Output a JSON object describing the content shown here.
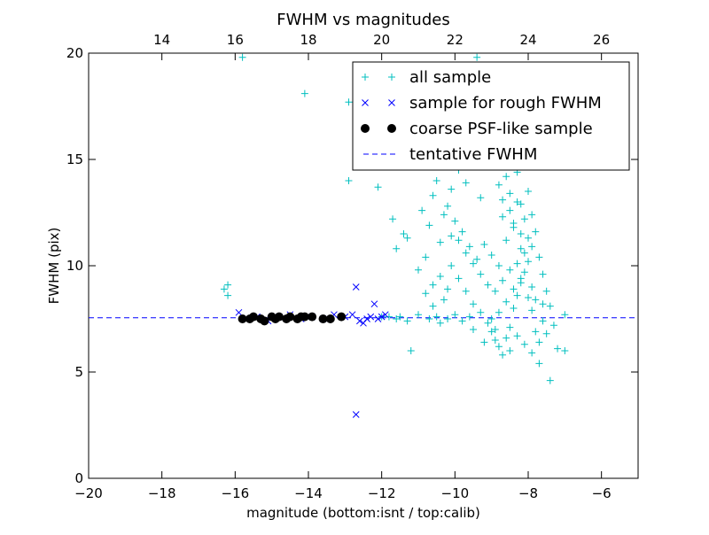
{
  "chart_data": {
    "type": "scatter",
    "title": "FWHM vs magnitudes",
    "xlabel": "magnitude (bottom:isnt / top:calib)",
    "ylabel": "FWHM (pix)",
    "xlim": [
      -20,
      -5
    ],
    "ylim": [
      0,
      20
    ],
    "top_xlim": [
      12,
      27
    ],
    "x_ticks": [
      -20,
      -18,
      -16,
      -14,
      -12,
      -10,
      -8,
      -6
    ],
    "x_tick_labels": [
      "−20",
      "−18",
      "−16",
      "−14",
      "−12",
      "−10",
      "−8",
      "−6"
    ],
    "y_ticks": [
      0,
      5,
      10,
      15,
      20
    ],
    "y_tick_labels": [
      "0",
      "5",
      "10",
      "15",
      "20"
    ],
    "top_ticks": [
      14,
      16,
      18,
      20,
      22,
      24,
      26
    ],
    "top_tick_labels": [
      "14",
      "16",
      "18",
      "20",
      "22",
      "24",
      "26"
    ],
    "grid": false,
    "legend_position": "upper-right",
    "tentative_fwhm": 7.55,
    "series": [
      {
        "name": "all sample",
        "marker": "plus",
        "color": "#00bfbf",
        "points": [
          [
            -16.3,
            8.9
          ],
          [
            -16.2,
            9.1
          ],
          [
            -16.2,
            8.6
          ],
          [
            -15.8,
            19.8
          ],
          [
            -14.1,
            18.1
          ],
          [
            -12.9,
            17.7
          ],
          [
            -12.9,
            14.0
          ],
          [
            -12.1,
            13.7
          ],
          [
            -11.7,
            12.2
          ],
          [
            -11.4,
            11.5
          ],
          [
            -11.3,
            11.3
          ],
          [
            -11.6,
            10.8
          ],
          [
            -11.2,
            6.0
          ],
          [
            -11.5,
            7.6
          ],
          [
            -11.0,
            7.7
          ],
          [
            -10.7,
            7.5
          ],
          [
            -10.5,
            7.6
          ],
          [
            -11.0,
            9.8
          ],
          [
            -10.6,
            9.1
          ],
          [
            -10.3,
            8.4
          ],
          [
            -10.8,
            10.4
          ],
          [
            -10.4,
            11.1
          ],
          [
            -10.9,
            12.6
          ],
          [
            -10.6,
            13.3
          ],
          [
            -10.2,
            12.8
          ],
          [
            -10.5,
            14.0
          ],
          [
            -10.1,
            13.6
          ],
          [
            -9.9,
            14.5
          ],
          [
            -9.7,
            13.9
          ],
          [
            -9.5,
            14.8
          ],
          [
            -9.3,
            13.2
          ],
          [
            -10.0,
            12.1
          ],
          [
            -9.8,
            11.6
          ],
          [
            -9.6,
            10.9
          ],
          [
            -9.4,
            10.3
          ],
          [
            -10.1,
            10.0
          ],
          [
            -9.9,
            9.4
          ],
          [
            -9.7,
            8.8
          ],
          [
            -9.5,
            8.2
          ],
          [
            -9.3,
            7.8
          ],
          [
            -9.1,
            7.3
          ],
          [
            -9.0,
            6.9
          ],
          [
            -8.9,
            6.5
          ],
          [
            -8.8,
            6.2
          ],
          [
            -8.7,
            5.8
          ],
          [
            -8.6,
            6.6
          ],
          [
            -8.5,
            7.1
          ],
          [
            -8.4,
            8.0
          ],
          [
            -8.3,
            8.6
          ],
          [
            -8.2,
            9.2
          ],
          [
            -8.1,
            9.7
          ],
          [
            -8.0,
            10.2
          ],
          [
            -7.9,
            10.9
          ],
          [
            -8.2,
            11.5
          ],
          [
            -8.4,
            12.0
          ],
          [
            -8.5,
            12.6
          ],
          [
            -8.7,
            13.1
          ],
          [
            -8.8,
            13.8
          ],
          [
            -8.6,
            14.2
          ],
          [
            -8.3,
            14.4
          ],
          [
            -9.0,
            15.1
          ],
          [
            -9.2,
            14.7
          ],
          [
            -8.9,
            15.9
          ],
          [
            -9.1,
            16.3
          ],
          [
            -8.7,
            16.8
          ],
          [
            -9.3,
            17.4
          ],
          [
            -9.0,
            18.2
          ],
          [
            -8.5,
            17.6
          ],
          [
            -8.8,
            19.1
          ],
          [
            -8.6,
            18.7
          ],
          [
            -9.4,
            19.8
          ],
          [
            -9.6,
            16.1
          ],
          [
            -9.8,
            15.5
          ],
          [
            -10.0,
            16.7
          ],
          [
            -10.3,
            15.3
          ],
          [
            -10.2,
            19.4
          ],
          [
            -10.9,
            18.9
          ],
          [
            -11.1,
            19.4
          ],
          [
            -8.2,
            12.9
          ],
          [
            -8.0,
            13.5
          ],
          [
            -7.9,
            12.4
          ],
          [
            -7.8,
            11.6
          ],
          [
            -7.7,
            10.4
          ],
          [
            -7.6,
            9.6
          ],
          [
            -7.5,
            8.8
          ],
          [
            -7.4,
            8.1
          ],
          [
            -7.6,
            7.4
          ],
          [
            -7.8,
            6.9
          ],
          [
            -7.7,
            6.4
          ],
          [
            -7.5,
            6.8
          ],
          [
            -7.3,
            7.2
          ],
          [
            -7.2,
            6.1
          ],
          [
            -7.0,
            6.0
          ],
          [
            -7.0,
            7.7
          ],
          [
            -7.4,
            4.6
          ],
          [
            -7.7,
            5.4
          ],
          [
            -7.9,
            5.9
          ],
          [
            -8.1,
            6.3
          ],
          [
            -8.3,
            6.7
          ],
          [
            -8.5,
            6.0
          ],
          [
            -8.9,
            7.0
          ],
          [
            -9.2,
            6.4
          ],
          [
            -9.5,
            7.0
          ],
          [
            -9.8,
            7.4
          ],
          [
            -10.2,
            7.5
          ],
          [
            -10.4,
            7.3
          ],
          [
            -10.0,
            7.7
          ],
          [
            -9.6,
            7.6
          ],
          [
            -9.0,
            7.5
          ],
          [
            -8.8,
            7.8
          ],
          [
            -8.6,
            8.3
          ],
          [
            -8.4,
            8.9
          ],
          [
            -8.2,
            9.4
          ],
          [
            -8.0,
            8.5
          ],
          [
            -7.9,
            9.0
          ],
          [
            -8.1,
            10.6
          ],
          [
            -8.3,
            10.1
          ],
          [
            -8.5,
            9.8
          ],
          [
            -8.7,
            9.3
          ],
          [
            -8.9,
            8.8
          ],
          [
            -9.1,
            9.1
          ],
          [
            -9.3,
            9.6
          ],
          [
            -9.5,
            10.1
          ],
          [
            -9.7,
            10.6
          ],
          [
            -9.9,
            11.2
          ],
          [
            -10.1,
            11.4
          ],
          [
            -10.3,
            12.4
          ],
          [
            -10.7,
            11.9
          ],
          [
            -10.8,
            8.7
          ],
          [
            -10.6,
            8.1
          ],
          [
            -10.4,
            9.5
          ],
          [
            -10.2,
            8.9
          ],
          [
            -11.3,
            7.4
          ],
          [
            -11.6,
            7.5
          ],
          [
            -11.8,
            7.6
          ],
          [
            -12.0,
            7.6
          ],
          [
            -8.6,
            11.2
          ],
          [
            -8.4,
            11.8
          ],
          [
            -8.2,
            10.8
          ],
          [
            -8.0,
            11.3
          ],
          [
            -7.8,
            8.4
          ],
          [
            -7.6,
            8.2
          ],
          [
            -8.8,
            10.0
          ],
          [
            -9.0,
            10.5
          ],
          [
            -9.2,
            11.0
          ],
          [
            -8.7,
            12.3
          ],
          [
            -8.5,
            13.4
          ],
          [
            -8.3,
            13.0
          ],
          [
            -8.1,
            12.2
          ],
          [
            -7.9,
            7.9
          ]
        ]
      },
      {
        "name": "sample for rough FWHM",
        "marker": "x",
        "color": "#0000ff",
        "points": [
          [
            -15.9,
            7.8
          ],
          [
            -15.7,
            7.5
          ],
          [
            -15.4,
            7.6
          ],
          [
            -15.1,
            7.4
          ],
          [
            -14.8,
            7.6
          ],
          [
            -14.5,
            7.7
          ],
          [
            -14.2,
            7.5
          ],
          [
            -13.9,
            7.6
          ],
          [
            -13.6,
            7.5
          ],
          [
            -13.3,
            7.7
          ],
          [
            -13.0,
            7.6
          ],
          [
            -12.8,
            7.7
          ],
          [
            -12.7,
            9.0
          ],
          [
            -12.6,
            7.4
          ],
          [
            -12.5,
            7.3
          ],
          [
            -12.4,
            7.5
          ],
          [
            -12.3,
            7.6
          ],
          [
            -12.1,
            7.5
          ],
          [
            -12.0,
            7.6
          ],
          [
            -11.9,
            7.7
          ],
          [
            -12.2,
            8.2
          ],
          [
            -12.7,
            3.0
          ]
        ]
      },
      {
        "name": "coarse PSF-like sample",
        "marker": "circle",
        "color": "#000000",
        "points": [
          [
            -15.8,
            7.5
          ],
          [
            -15.6,
            7.5
          ],
          [
            -15.5,
            7.6
          ],
          [
            -15.3,
            7.5
          ],
          [
            -15.2,
            7.4
          ],
          [
            -15.0,
            7.6
          ],
          [
            -14.9,
            7.5
          ],
          [
            -14.8,
            7.6
          ],
          [
            -14.6,
            7.5
          ],
          [
            -14.5,
            7.6
          ],
          [
            -14.3,
            7.5
          ],
          [
            -14.2,
            7.6
          ],
          [
            -14.1,
            7.6
          ],
          [
            -13.9,
            7.6
          ],
          [
            -13.6,
            7.5
          ],
          [
            -13.4,
            7.5
          ],
          [
            -13.1,
            7.6
          ]
        ]
      },
      {
        "name": "tentative FWHM",
        "marker": "dashed-line",
        "color": "#0000ff"
      }
    ]
  }
}
